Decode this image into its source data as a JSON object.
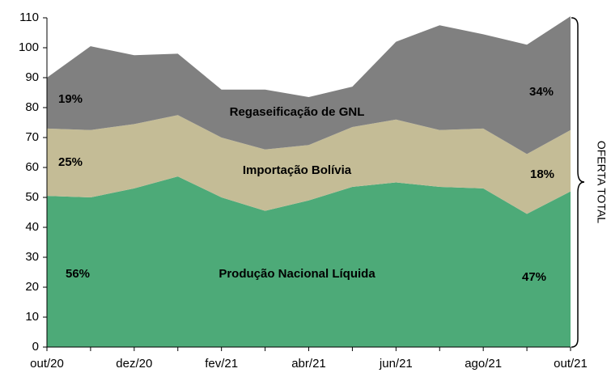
{
  "chart_data": {
    "type": "stacked-area",
    "categories": [
      "out/20",
      null,
      "dez/20",
      null,
      "fev/21",
      null,
      "abr/21",
      null,
      "jun/21",
      null,
      "ago/21",
      null,
      "out/21"
    ],
    "series": [
      {
        "name": "Produção Nacional Líquida",
        "color": "#4daa78",
        "values": [
          50.5,
          50,
          53,
          57,
          50,
          45.5,
          49,
          53.5,
          55,
          53.5,
          53,
          44.5,
          52
        ]
      },
      {
        "name": "Importação Bolívia",
        "color": "#c4bc96",
        "values": [
          22.5,
          22.5,
          21.5,
          20.5,
          20,
          20.5,
          18.5,
          20,
          21,
          19,
          20,
          20,
          20.5
        ]
      },
      {
        "name": "Regaseificação de GNL",
        "color": "#808080",
        "values": [
          17,
          28,
          23,
          20.5,
          16,
          20,
          16,
          13.5,
          26,
          35,
          31.5,
          36.5,
          38
        ]
      }
    ],
    "annotations": [
      "56%",
      "25%",
      "19%",
      "47%",
      "18%",
      "34%"
    ],
    "side_label": "OFERTA TOTAL",
    "ylim": [
      0,
      110
    ],
    "yticks": [
      0,
      10,
      20,
      30,
      40,
      50,
      60,
      70,
      80,
      90,
      100,
      110
    ],
    "grid": false
  }
}
